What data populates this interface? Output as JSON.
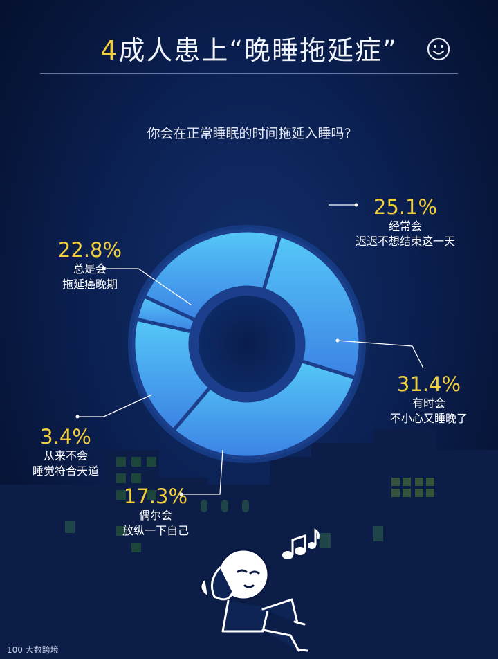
{
  "header": {
    "title_number": "4",
    "title_text": "成人患上“晚睡拖延症”",
    "question": "你会在正常睡眠的时间拖延入睡吗?"
  },
  "chart_data": {
    "type": "pie",
    "title": "你会在正常睡眠的时间拖延入睡吗?",
    "unit": "%",
    "slices": [
      {
        "value": 25.1,
        "label": "25.1%",
        "line1": "经常会",
        "line2": "迟迟不想结束这一天"
      },
      {
        "value": 31.4,
        "label": "31.4%",
        "line1": "有时会",
        "line2": "不小心又睡晚了"
      },
      {
        "value": 17.3,
        "label": "17.3%",
        "line1": "偶尔会",
        "line2": "放纵一下自己"
      },
      {
        "value": 3.4,
        "label": "3.4%",
        "line1": "从来不会",
        "line2": "睡觉符合天道"
      },
      {
        "value": 22.8,
        "label": "22.8%",
        "line1": "总是会",
        "line2": "拖延癌晚期"
      }
    ]
  },
  "footer": {
    "logo_mark": "100",
    "brand": "大数跨境"
  },
  "colors": {
    "accent": "#f1cf3c",
    "ring_top": "#52c4f6",
    "ring_bottom": "#3f86e6",
    "divider": "#1b3f8a"
  },
  "icons": [
    "smiley-icon",
    "music-note-icon",
    "sleeping-character-illustration",
    "city-skyline-illustration"
  ]
}
